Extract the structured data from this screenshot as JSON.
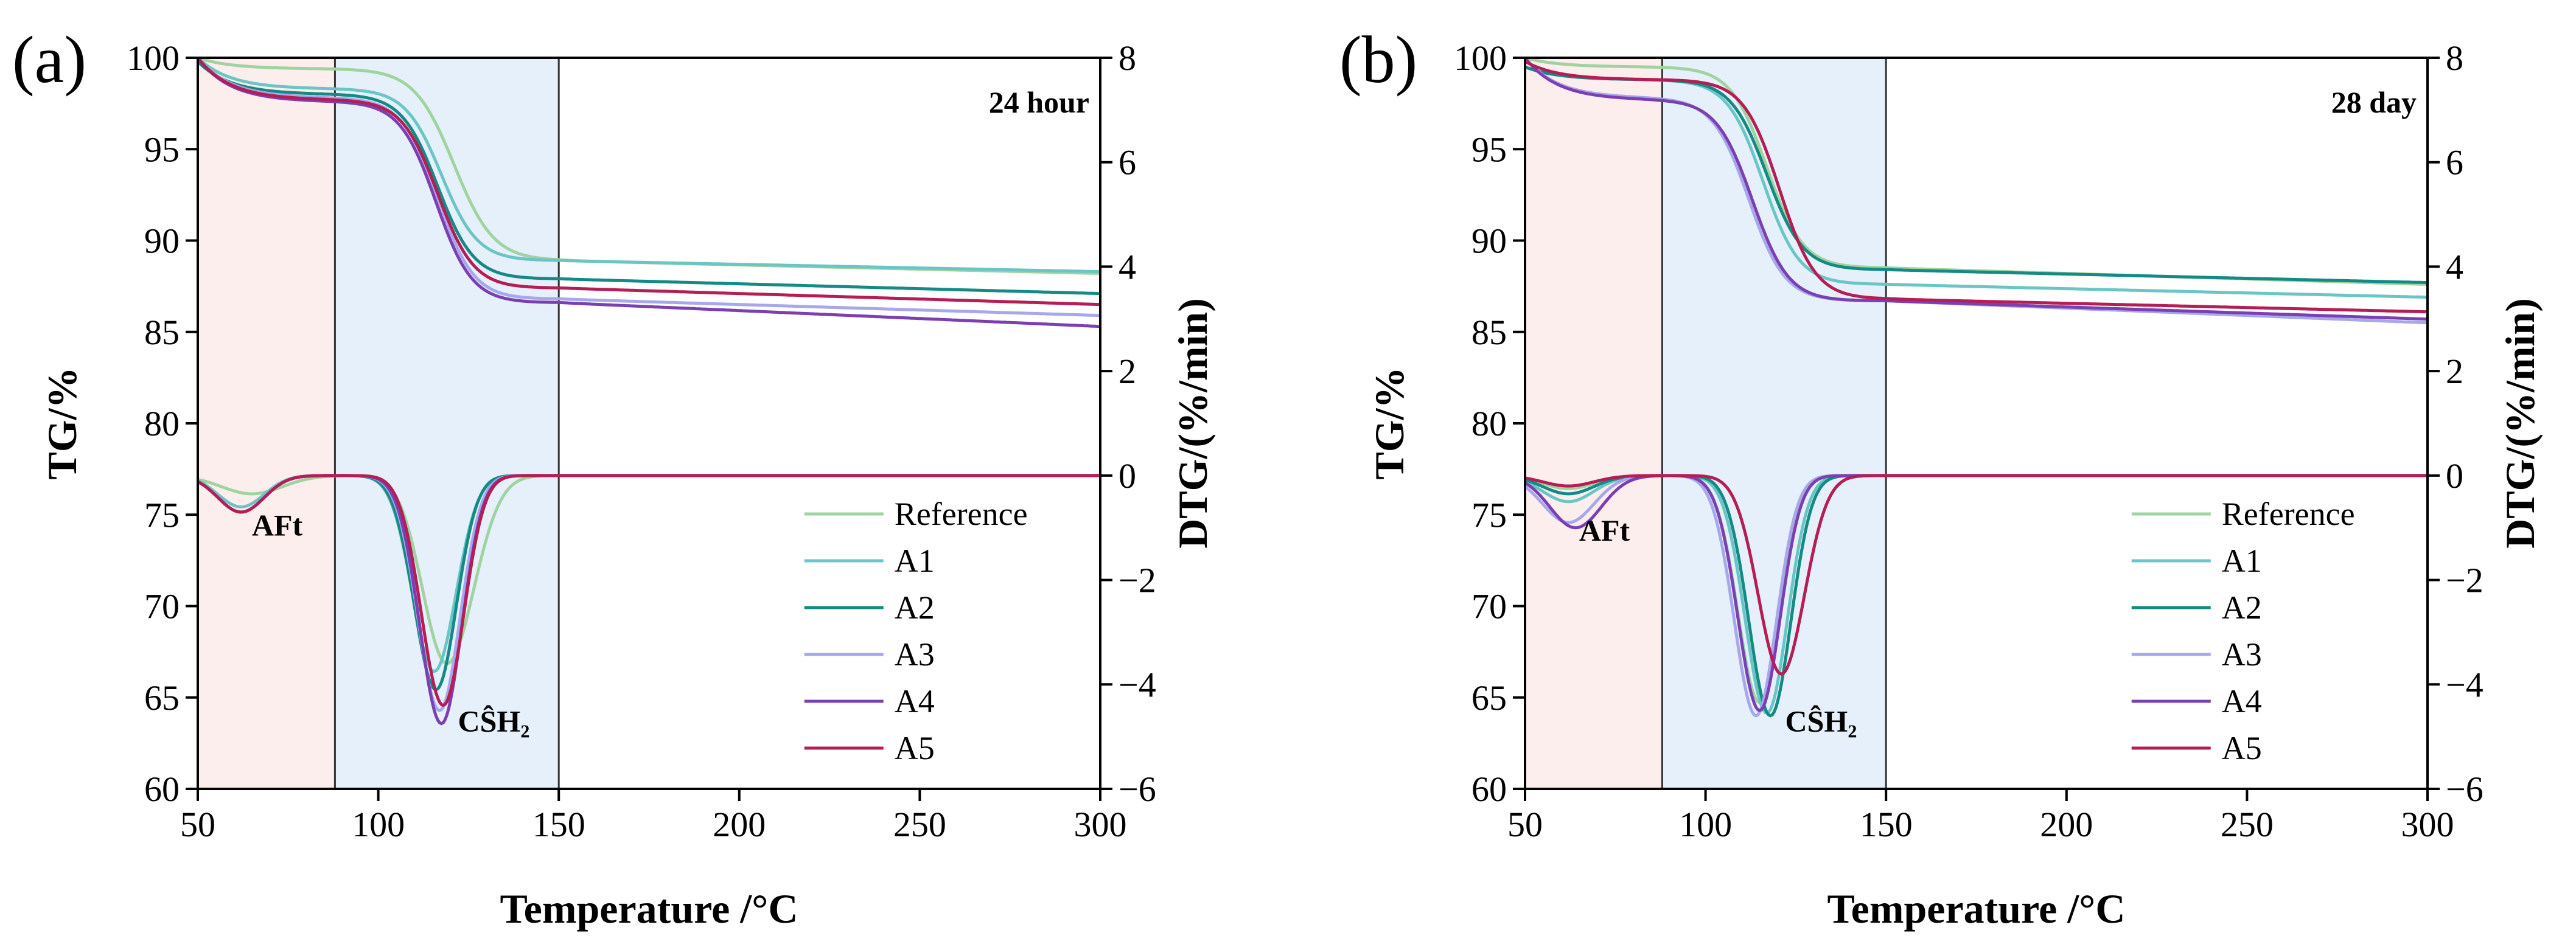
{
  "chart_data": [
    {
      "type": "line",
      "panel_label": "(a)",
      "title": "24 hour",
      "xlabel": "Temperature /°C",
      "ylabel_left": "TG/%",
      "ylabel_right": "DTG/(%/min)",
      "xlim": [
        50,
        300
      ],
      "ylim_left": [
        60,
        100
      ],
      "ylim_right": [
        -6,
        8
      ],
      "xticks": [
        50,
        100,
        150,
        200,
        250,
        300
      ],
      "yticks_left": [
        60,
        65,
        70,
        75,
        80,
        85,
        90,
        95,
        100
      ],
      "yticks_right": [
        -6,
        -4,
        -2,
        0,
        2,
        4,
        6,
        8
      ],
      "yticks_right_labels": [
        "−6",
        "−4",
        "−2",
        "0",
        "2",
        "4",
        "6",
        "8"
      ],
      "shaded_regions": [
        {
          "x": [
            50,
            88
          ],
          "label": "AFt",
          "color": "#fdeeee"
        },
        {
          "x": [
            88,
            150
          ],
          "label": "CŜH₂",
          "color": "#e6f0fa"
        }
      ],
      "annotations": [
        {
          "text": "AFt",
          "x": 72,
          "y_dtg": -1.15
        },
        {
          "text": "CŜH₂",
          "x": 132,
          "y_dtg": -4.9
        }
      ],
      "legend_position": "bottom-right",
      "series": [
        {
          "name": "Reference",
          "color": "#9fd39f",
          "tg": {
            "start": 100,
            "plateau": 99.4,
            "mid": 121,
            "width": 5.5,
            "end": 88.9,
            "final": 88.2
          },
          "dtg": {
            "baseline": 0,
            "pre": [
              [
                65,
                -0.35,
                12
              ]
            ],
            "peak_x": 119,
            "peak_depth": -3.6,
            "left_w": 9.5,
            "right_w": 10.5
          }
        },
        {
          "name": "A1",
          "color": "#6ac5c5",
          "tg": {
            "start": 100,
            "plateau": 98.3,
            "mid": 117.5,
            "width": 5.0,
            "end": 88.9,
            "final": 88.3
          },
          "dtg": {
            "baseline": 0,
            "pre": [
              [
                62,
                -0.6,
                9
              ]
            ],
            "peak_x": 115.5,
            "peak_depth": -3.75,
            "left_w": 8.5,
            "right_w": 8.5
          }
        },
        {
          "name": "A2",
          "color": "#138a84",
          "tg": {
            "start": 99.8,
            "plateau": 98.0,
            "mid": 116.5,
            "width": 5.0,
            "end": 87.9,
            "final": 87.1
          },
          "dtg": {
            "baseline": 0,
            "pre": [
              [
                62,
                -0.7,
                9
              ]
            ],
            "peak_x": 116,
            "peak_depth": -4.1,
            "left_w": 8.5,
            "right_w": 8.0
          }
        },
        {
          "name": "A3",
          "color": "#a7a7ec",
          "tg": {
            "start": 100,
            "plateau": 97.8,
            "mid": 116.5,
            "width": 5.0,
            "end": 86.8,
            "final": 85.9
          },
          "dtg": {
            "baseline": 0,
            "pre": [
              [
                62,
                -0.7,
                9
              ]
            ],
            "peak_x": 117,
            "peak_depth": -4.5,
            "left_w": 8.5,
            "right_w": 8.0
          }
        },
        {
          "name": "A4",
          "color": "#7b3fb2",
          "tg": {
            "start": 100,
            "plateau": 97.6,
            "mid": 116.0,
            "width": 5.0,
            "end": 86.6,
            "final": 85.3
          },
          "dtg": {
            "baseline": 0,
            "pre": [
              [
                62,
                -0.7,
                9
              ]
            ],
            "peak_x": 117.5,
            "peak_depth": -4.75,
            "left_w": 8.5,
            "right_w": 8.0
          }
        },
        {
          "name": "A5",
          "color": "#b51d54",
          "tg": {
            "start": 100,
            "plateau": 97.7,
            "mid": 116.5,
            "width": 5.0,
            "end": 87.4,
            "final": 86.5
          },
          "dtg": {
            "baseline": 0,
            "pre": [
              [
                62,
                -0.7,
                9
              ]
            ],
            "peak_x": 118,
            "peak_depth": -4.4,
            "left_w": 8.5,
            "right_w": 8.0
          }
        }
      ]
    },
    {
      "type": "line",
      "panel_label": "(b)",
      "title": "28 day",
      "xlabel": "Temperature /°C",
      "ylabel_left": "TG/%",
      "ylabel_right": "DTG/(%/min)",
      "xlim": [
        50,
        300
      ],
      "ylim_left": [
        60,
        100
      ],
      "ylim_right": [
        -6,
        8
      ],
      "xticks": [
        50,
        100,
        150,
        200,
        250,
        300
      ],
      "yticks_left": [
        60,
        65,
        70,
        75,
        80,
        85,
        90,
        95,
        100
      ],
      "yticks_right": [
        -6,
        -4,
        -2,
        0,
        2,
        4,
        6,
        8
      ],
      "yticks_right_labels": [
        "−6",
        "−4",
        "−2",
        "0",
        "2",
        "4",
        "6",
        "8"
      ],
      "shaded_regions": [
        {
          "x": [
            50,
            88
          ],
          "label": "AFt",
          "color": "#fdeeee"
        },
        {
          "x": [
            88,
            150
          ],
          "label": "CŜH₂",
          "color": "#e6f0fa"
        }
      ],
      "annotations": [
        {
          "text": "AFt",
          "x": 72,
          "y_dtg": -1.25
        },
        {
          "text": "CŜH₂",
          "x": 132,
          "y_dtg": -4.9
        }
      ],
      "legend_position": "bottom-right",
      "series": [
        {
          "name": "Reference",
          "color": "#9fd39f",
          "tg": {
            "start": 100,
            "plateau": 99.5,
            "mid": 117,
            "width": 5.0,
            "end": 88.5,
            "final": 87.6
          },
          "dtg": {
            "baseline": 0,
            "pre": [
              [
                62,
                -0.25,
                10
              ]
            ],
            "peak_x": 115,
            "peak_depth": -4.35,
            "left_w": 8.5,
            "right_w": 8.0
          }
        },
        {
          "name": "A1",
          "color": "#6ac5c5",
          "tg": {
            "start": 99.5,
            "plateau": 98.8,
            "mid": 116,
            "width": 5.0,
            "end": 87.6,
            "final": 86.9
          },
          "dtg": {
            "baseline": 0,
            "pre": [
              [
                62,
                -0.5,
                10
              ]
            ],
            "peak_x": 117,
            "peak_depth": -4.55,
            "left_w": 8.5,
            "right_w": 8.0
          }
        },
        {
          "name": "A2",
          "color": "#138a84",
          "tg": {
            "start": 99.5,
            "plateau": 98.8,
            "mid": 117,
            "width": 5.0,
            "end": 88.4,
            "final": 87.7
          },
          "dtg": {
            "baseline": 0,
            "pre": [
              [
                62,
                -0.35,
                10
              ]
            ],
            "peak_x": 118,
            "peak_depth": -4.6,
            "left_w": 8.5,
            "right_w": 8.0
          }
        },
        {
          "name": "A3",
          "color": "#a7a7ec",
          "tg": {
            "start": 100,
            "plateau": 97.8,
            "mid": 112,
            "width": 5.0,
            "end": 86.7,
            "final": 85.5
          },
          "dtg": {
            "baseline": 0,
            "pre": [
              [
                62,
                -0.9,
                10
              ]
            ],
            "peak_x": 114,
            "peak_depth": -4.6,
            "left_w": 8.5,
            "right_w": 8.0
          }
        },
        {
          "name": "A4",
          "color": "#7b3fb2",
          "tg": {
            "start": 100,
            "plateau": 97.7,
            "mid": 113,
            "width": 5.0,
            "end": 86.7,
            "final": 85.7
          },
          "dtg": {
            "baseline": 0,
            "pre": [
              [
                64,
                -1.0,
                10
              ]
            ],
            "peak_x": 115,
            "peak_depth": -4.5,
            "left_w": 8.5,
            "right_w": 8.0
          }
        },
        {
          "name": "A5",
          "color": "#b51d54",
          "tg": {
            "start": 99.8,
            "plateau": 98.8,
            "mid": 120.5,
            "width": 5.0,
            "end": 86.8,
            "final": 86.1
          },
          "dtg": {
            "baseline": 0,
            "pre": [
              [
                62,
                -0.2,
                10
              ]
            ],
            "peak_x": 121,
            "peak_depth": -3.8,
            "left_w": 9.0,
            "right_w": 9.0
          }
        }
      ]
    }
  ]
}
